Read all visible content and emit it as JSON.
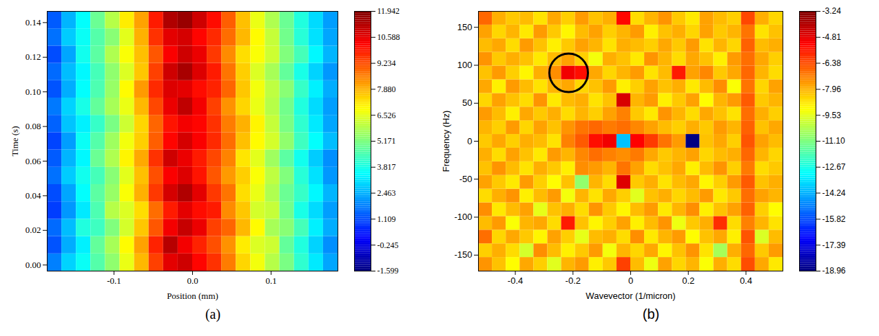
{
  "chart_data": [
    {
      "type": "heatmap",
      "panel": "(a)",
      "xlabel": "Position (mm)",
      "ylabel": "Time (s)",
      "xlim": [
        -0.185,
        0.185
      ],
      "xticks": [
        -0.1,
        {
          "value": 0,
          "label": "0.0"
        },
        0.1
      ],
      "ylim": [
        -0.0035,
        0.1465
      ],
      "yticks": [
        {
          "value": 0,
          "label": "0.00"
        },
        0.02,
        0.04,
        0.06,
        0.08,
        {
          "value": 0.1,
          "label": "0.10"
        },
        0.12,
        0.14
      ],
      "x_edges": [
        -0.185,
        -0.1665,
        -0.148,
        -0.1295,
        -0.111,
        -0.0925,
        -0.074,
        -0.0555,
        -0.037,
        -0.0185,
        0,
        0.0185,
        0.037,
        0.0555,
        0.074,
        0.0925,
        0.111,
        0.1295,
        0.148,
        0.1665,
        0.185
      ],
      "y_edges": [
        -0.0035,
        0.0065,
        0.0165,
        0.0265,
        0.0365,
        0.0465,
        0.0565,
        0.0665,
        0.0765,
        0.0865,
        0.0965,
        0.1065,
        0.1165,
        0.1265,
        0.1365,
        0.1465
      ],
      "values": [
        [
          1.8,
          2.9,
          3.6,
          4.6,
          5.4,
          6.6,
          7.8,
          9.4,
          10.6,
          10.9,
          10.2,
          9.6,
          8.6,
          7.4,
          6.7,
          5.9,
          5.1,
          4.1,
          3.2,
          2.3
        ],
        [
          1.2,
          2.4,
          3.3,
          4.8,
          5.7,
          6.9,
          8.1,
          9.8,
          11.2,
          10.4,
          9.8,
          9.2,
          8.3,
          7.1,
          6.4,
          6.2,
          4.8,
          3.9,
          2.9,
          2.0
        ],
        [
          1.5,
          2.6,
          3.9,
          4.3,
          5.2,
          6.3,
          7.6,
          9.1,
          10.4,
          11.0,
          10.5,
          9.4,
          8.9,
          7.8,
          6.9,
          5.7,
          5.3,
          4.4,
          3.3,
          2.4
        ],
        [
          0.9,
          2.1,
          3.2,
          4.5,
          5.9,
          6.4,
          7.3,
          8.8,
          9.9,
          10.6,
          10.1,
          9.9,
          8.4,
          7.6,
          6.3,
          6.1,
          5.0,
          3.8,
          3.0,
          2.2
        ],
        [
          1.1,
          2.3,
          3.5,
          4.7,
          5.5,
          6.8,
          7.9,
          9.5,
          10.8,
          11.3,
          10.6,
          9.5,
          8.7,
          7.3,
          6.6,
          5.8,
          4.9,
          4.2,
          3.4,
          2.5
        ],
        [
          1.6,
          2.8,
          3.7,
          4.4,
          5.3,
          6.5,
          7.7,
          9.2,
          10.3,
          10.7,
          10.0,
          9.1,
          8.2,
          7.5,
          6.8,
          6.0,
          5.2,
          4.0,
          3.1,
          2.1
        ],
        [
          1.3,
          2.5,
          3.4,
          4.9,
          5.8,
          7.0,
          8.0,
          9.6,
          10.9,
          10.5,
          9.9,
          9.3,
          8.5,
          7.2,
          6.5,
          5.6,
          4.7,
          3.7,
          2.8,
          2.0
        ],
        [
          1.0,
          2.2,
          3.6,
          4.6,
          5.6,
          6.7,
          7.5,
          9.0,
          10.2,
          10.8,
          10.3,
          9.7,
          8.8,
          7.7,
          6.9,
          6.3,
          5.4,
          4.3,
          3.5,
          2.6
        ],
        [
          1.4,
          2.7,
          3.3,
          4.2,
          5.1,
          6.2,
          7.4,
          8.9,
          10.0,
          10.4,
          10.2,
          9.6,
          8.6,
          7.9,
          7.0,
          6.1,
          5.1,
          4.1,
          3.2,
          2.3
        ],
        [
          1.7,
          2.9,
          3.8,
          4.8,
          5.7,
          6.6,
          7.8,
          9.3,
          10.5,
          11.1,
          10.4,
          9.4,
          8.3,
          7.4,
          6.6,
          5.9,
          5.0,
          3.9,
          3.0,
          2.2
        ],
        [
          1.2,
          2.4,
          3.5,
          4.5,
          5.5,
          6.9,
          8.2,
          9.7,
          10.7,
          10.6,
          10.1,
          9.8,
          8.9,
          7.6,
          6.7,
          6.0,
          5.3,
          4.2,
          3.3,
          2.4
        ],
        [
          1.5,
          2.6,
          3.4,
          4.4,
          5.4,
          6.4,
          7.6,
          9.4,
          10.9,
          11.4,
          10.7,
          9.9,
          8.7,
          7.5,
          6.4,
          5.7,
          4.8,
          3.8,
          2.9,
          2.1
        ],
        [
          1.1,
          2.3,
          3.7,
          4.7,
          5.8,
          6.8,
          7.7,
          9.1,
          10.3,
          10.9,
          10.5,
          9.5,
          8.4,
          7.3,
          6.8,
          6.2,
          5.2,
          4.4,
          3.4,
          2.5
        ],
        [
          1.6,
          2.8,
          3.6,
          4.6,
          5.3,
          6.5,
          7.9,
          9.6,
          10.6,
          10.8,
          10.2,
          9.7,
          8.8,
          7.8,
          6.9,
          6.1,
          5.0,
          4.0,
          3.1,
          2.3
        ],
        [
          1.3,
          2.5,
          3.5,
          4.9,
          5.9,
          7.1,
          8.1,
          9.9,
          11.3,
          11.6,
          10.9,
          10.1,
          9.0,
          7.7,
          6.6,
          5.8,
          4.9,
          3.9,
          3.0,
          2.2
        ]
      ],
      "colorbar": {
        "range": [
          -1.599,
          11.942
        ],
        "ticks": [
          -1.599,
          -0.245,
          1.109,
          2.463,
          3.817,
          5.171,
          6.526,
          {
            "value": 7.88,
            "label": "7.880"
          },
          9.234,
          10.588,
          11.942
        ]
      }
    },
    {
      "type": "heatmap",
      "panel": "(b)",
      "xlabel": "Wavevector (1/micron)",
      "ylabel": "Frequency (Hz)",
      "xlim": [
        -0.528,
        0.528
      ],
      "xticks": [
        -0.4,
        -0.2,
        0,
        0.2,
        0.4
      ],
      "ylim": [
        -171,
        171
      ],
      "yticks": [
        -150,
        -100,
        -50,
        0,
        50,
        100,
        150
      ],
      "x_edges": [
        -0.528,
        -0.48,
        -0.432,
        -0.384,
        -0.336,
        -0.288,
        -0.24,
        -0.192,
        -0.144,
        -0.096,
        -0.048,
        0,
        0.048,
        0.096,
        0.144,
        0.192,
        0.24,
        0.288,
        0.336,
        0.384,
        0.432,
        0.48,
        0.528
      ],
      "y_edges": [
        -171,
        -153,
        -135,
        -117,
        -99,
        -81,
        -63,
        -45,
        -27,
        -9,
        9,
        27,
        45,
        63,
        81,
        99,
        117,
        135,
        153,
        171
      ],
      "values": [
        [
          -7.5,
          -8.2,
          -9.1,
          -7.8,
          -8.4,
          -9.6,
          -8.0,
          -7.6,
          -8.9,
          -8.3,
          -6.2,
          -8.1,
          -9.4,
          -7.7,
          -8.5,
          -8.0,
          -9.2,
          -7.9,
          -8.6,
          -6.4,
          -7.8,
          -8.8
        ],
        [
          -8.4,
          -7.9,
          -8.6,
          -9.8,
          -7.4,
          -8.1,
          -8.9,
          -8.3,
          -7.6,
          -9.3,
          -8.0,
          -8.5,
          -7.8,
          -9.0,
          -8.2,
          -7.5,
          -8.7,
          -10.5,
          -7.9,
          -6.8,
          -8.3,
          -7.6
        ],
        [
          -6.9,
          -8.5,
          -7.8,
          -8.3,
          -9.0,
          -7.7,
          -8.4,
          -9.5,
          -8.1,
          -7.9,
          -8.6,
          -7.4,
          -8.8,
          -8.0,
          -7.6,
          -9.1,
          -8.2,
          -7.8,
          -8.9,
          -6.5,
          -9.7,
          -8.1
        ],
        [
          -8.1,
          -7.6,
          -9.2,
          -8.0,
          -7.8,
          -8.6,
          -5.6,
          -8.2,
          -9.0,
          -8.4,
          -7.7,
          -8.9,
          -8.1,
          -7.5,
          -9.4,
          -8.3,
          -7.9,
          -5.9,
          -8.6,
          -7.2,
          -8.0,
          -8.7
        ],
        [
          -7.4,
          -8.8,
          -8.1,
          -7.7,
          -9.5,
          -8.2,
          -7.9,
          -8.6,
          -7.5,
          -8.3,
          -9.0,
          -8.1,
          -7.6,
          -8.8,
          -8.0,
          -7.4,
          -8.9,
          -8.2,
          -7.7,
          -6.7,
          -8.4,
          -9.1
        ],
        [
          -8.6,
          -7.9,
          -7.5,
          -8.9,
          -8.1,
          -7.6,
          -9.3,
          -8.0,
          -8.7,
          -7.8,
          -8.4,
          -9.6,
          -8.2,
          -7.9,
          -8.5,
          -8.1,
          -7.6,
          -8.8,
          -8.3,
          -6.9,
          -7.7,
          -8.0
        ],
        [
          -7.7,
          -8.3,
          -8.8,
          -7.6,
          -8.4,
          -9.1,
          -8.2,
          -10.8,
          -8.0,
          -8.6,
          -4.7,
          -8.3,
          -7.9,
          -8.7,
          -8.1,
          -7.8,
          -9.0,
          -8.4,
          -7.6,
          -6.6,
          -8.2,
          -7.9
        ],
        [
          -8.2,
          -7.5,
          -8.1,
          -8.7,
          -7.9,
          -8.3,
          -8.9,
          -7.4,
          -7.6,
          -8.0,
          -7.0,
          -7.7,
          -8.6,
          -8.2,
          -7.8,
          -8.9,
          -8.1,
          -7.5,
          -8.4,
          -7.1,
          -8.6,
          -8.3
        ],
        [
          -7.9,
          -8.6,
          -7.7,
          -8.2,
          -8.8,
          -7.6,
          -8.0,
          -7.3,
          -6.9,
          -7.2,
          -7.4,
          -7.1,
          -7.8,
          -8.3,
          -8.0,
          -7.7,
          -8.5,
          -8.1,
          -7.9,
          -6.8,
          -8.0,
          -8.5
        ],
        [
          -8.3,
          -7.8,
          -8.4,
          -7.9,
          -8.1,
          -8.7,
          -7.2,
          -6.6,
          -5.4,
          -5.0,
          -14.0,
          -5.2,
          -6.1,
          -7.0,
          -7.6,
          -18.9,
          -8.2,
          -7.8,
          -8.4,
          -6.5,
          -7.7,
          -8.1
        ],
        [
          -8.0,
          -8.4,
          -7.6,
          -8.5,
          -7.7,
          -8.2,
          -7.5,
          -7.0,
          -6.8,
          -7.1,
          -6.9,
          -7.3,
          -7.7,
          -8.1,
          -8.4,
          -7.9,
          -8.3,
          -7.6,
          -8.0,
          -6.7,
          -8.2,
          -7.8
        ],
        [
          -7.6,
          -8.1,
          -8.9,
          -7.8,
          -8.3,
          -7.9,
          -8.6,
          -8.0,
          -8.4,
          -7.7,
          -7.2,
          -8.3,
          -8.8,
          -7.5,
          -8.0,
          -8.6,
          -7.8,
          -8.2,
          -8.7,
          -6.9,
          -7.9,
          -8.4
        ],
        [
          -8.5,
          -7.7,
          -8.2,
          -8.6,
          -7.5,
          -8.8,
          -8.1,
          -7.9,
          -8.7,
          -8.2,
          -4.6,
          -8.0,
          -7.6,
          -8.9,
          -8.3,
          -7.7,
          -9.1,
          -8.0,
          -7.6,
          -6.6,
          -8.3,
          -8.0
        ],
        [
          -7.8,
          -8.9,
          -7.6,
          -8.1,
          -8.7,
          -8.0,
          -7.8,
          -8.5,
          -8.2,
          -7.6,
          -8.9,
          -8.4,
          -7.7,
          -8.2,
          -7.9,
          -8.8,
          -8.1,
          -7.4,
          -9.2,
          -7.0,
          -8.5,
          -7.7
        ],
        [
          -8.2,
          -7.6,
          -8.4,
          -9.0,
          -7.9,
          -7.4,
          -5.0,
          -5.4,
          -7.8,
          -8.5,
          -8.0,
          -7.6,
          -8.7,
          -8.1,
          -5.6,
          -7.7,
          -7.3,
          -8.3,
          -7.8,
          -6.8,
          -8.0,
          -8.6
        ],
        [
          -7.5,
          -8.3,
          -7.9,
          -8.2,
          -8.8,
          -8.1,
          -7.7,
          -8.4,
          -9.3,
          -7.9,
          -8.2,
          -8.8,
          -7.5,
          -8.0,
          -8.6,
          -7.8,
          -8.2,
          -8.9,
          -7.6,
          -6.9,
          -7.8,
          -8.4
        ],
        [
          -8.1,
          -7.8,
          -8.6,
          -7.6,
          -8.2,
          -8.9,
          -8.3,
          -7.7,
          -8.0,
          -8.7,
          -7.9,
          -8.1,
          -8.4,
          -7.8,
          -8.3,
          -7.6,
          -8.7,
          -8.0,
          -8.5,
          -6.7,
          -8.1,
          -7.9
        ],
        [
          -7.7,
          -8.5,
          -8.0,
          -8.8,
          -7.6,
          -8.3,
          -9.0,
          -8.1,
          -7.7,
          -8.4,
          -8.0,
          -7.6,
          -8.9,
          -8.2,
          -7.9,
          -8.5,
          -7.7,
          -8.3,
          -8.0,
          -7.0,
          -8.7,
          -8.2
        ],
        [
          -6.8,
          -7.9,
          -8.3,
          -8.1,
          -8.7,
          -7.8,
          -8.4,
          -7.6,
          -8.2,
          -7.9,
          -5.3,
          -8.6,
          -8.0,
          -7.5,
          -8.3,
          -8.8,
          -7.7,
          -8.1,
          -8.4,
          -6.3,
          -7.9,
          -8.5
        ]
      ],
      "highlight": {
        "x": -0.215,
        "y": 90
      },
      "colorbar": {
        "range": [
          -18.96,
          -3.24
        ],
        "ticks": [
          -18.96,
          -17.39,
          -15.82,
          -14.24,
          -12.67,
          {
            "value": -11.1,
            "label": "-11.10"
          },
          -9.53,
          -7.96,
          -6.38,
          -4.81,
          -3.24
        ]
      }
    }
  ]
}
